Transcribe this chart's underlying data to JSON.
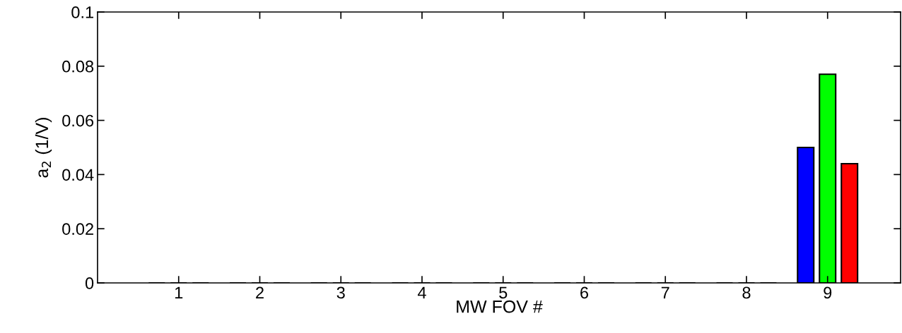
{
  "chart_data": {
    "type": "bar",
    "xlabel": "MW FOV #",
    "ylabel": "a$_{2}$ (1/V)",
    "x": [
      1,
      2,
      3,
      4,
      5,
      6,
      7,
      8,
      9
    ],
    "series": [
      {
        "color": "#0000ff",
        "values": [
          0,
          0,
          0,
          0,
          0,
          0,
          0,
          0,
          0.05
        ]
      },
      {
        "color": "#00ff00",
        "values": [
          0,
          0,
          0,
          0,
          0,
          0,
          0,
          0,
          0.077
        ]
      },
      {
        "color": "#ff0000",
        "values": [
          0,
          0,
          0,
          0,
          0,
          0,
          0,
          0,
          0.044
        ]
      }
    ],
    "xlim": [
      0,
      9.9
    ],
    "xticks": [
      1,
      2,
      3,
      4,
      5,
      6,
      7,
      8,
      9
    ],
    "ylim": [
      0,
      0.1
    ],
    "yticks": [
      0,
      0.02,
      0.04,
      0.06,
      0.08,
      0.1
    ],
    "grid": false
  }
}
